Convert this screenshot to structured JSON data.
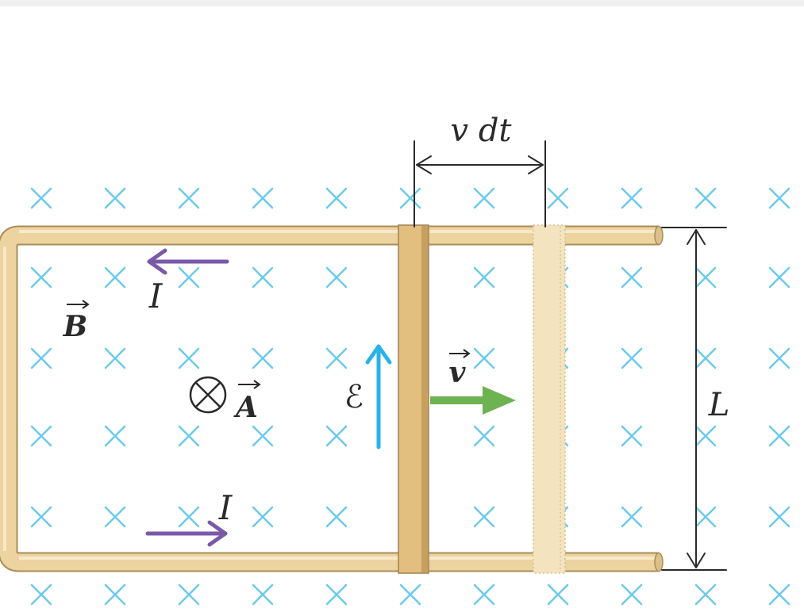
{
  "diagram": {
    "labels": {
      "displacement": "v dt",
      "current_top": "I",
      "current_bottom": "I",
      "field": {
        "text": "B",
        "vector": true
      },
      "area": {
        "text": "A",
        "vector": true
      },
      "emf": "ℰ",
      "velocity": {
        "text": "v",
        "vector": true
      },
      "length": "L"
    }
  },
  "colors": {
    "field_mark": "#6ccaec",
    "current_arrow": "#7b58a8",
    "emf_arrow": "#29b3e6",
    "velocity_arrow": "#6db352",
    "conductor": "#ecd39f",
    "conductor_edge": "#a88d58",
    "sliding_bar": "#e2bf7e",
    "ghost_bar": "#f3e3bf"
  }
}
